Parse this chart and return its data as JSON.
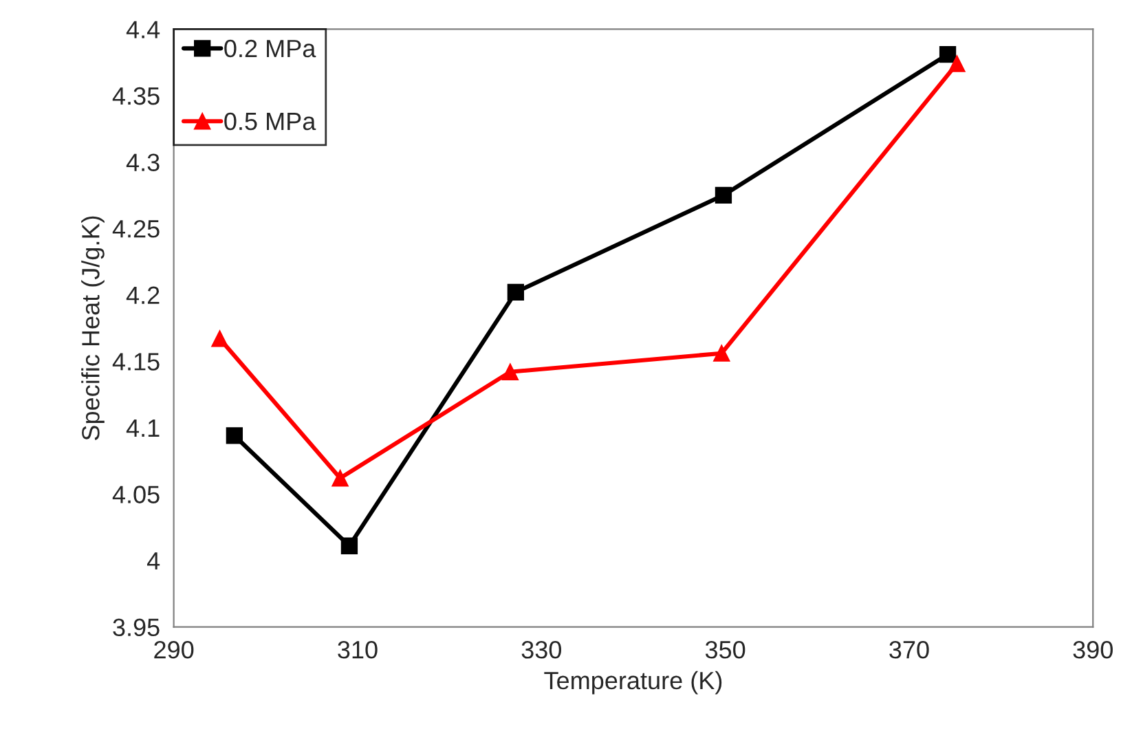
{
  "chart_data": {
    "type": "line",
    "xlabel": "Temperature (K)",
    "ylabel": "Specific Heat (J/g.K)",
    "xlim": [
      290,
      390
    ],
    "xticks": [
      290,
      310,
      330,
      350,
      370,
      390
    ],
    "ylim": [
      3.95,
      4.4
    ],
    "yticks": [
      3.95,
      4,
      4.05,
      4.1,
      4.15,
      4.2,
      4.25,
      4.3,
      4.35,
      4.4
    ],
    "grid": false,
    "legend": "top left",
    "series": [
      {
        "name": "0.2 MPa",
        "color": "#000000",
        "marker": "square",
        "x": [
          296.6,
          309.1,
          327.2,
          349.8,
          374.2
        ],
        "values": [
          4.094,
          4.011,
          4.202,
          4.275,
          4.381
        ]
      },
      {
        "name": "0.5 MPa",
        "color": "#ff0000",
        "marker": "triangle",
        "x": [
          295,
          308.1,
          326.6,
          349.6,
          375.2
        ],
        "values": [
          4.167,
          4.062,
          4.142,
          4.156,
          4.374
        ]
      }
    ]
  }
}
